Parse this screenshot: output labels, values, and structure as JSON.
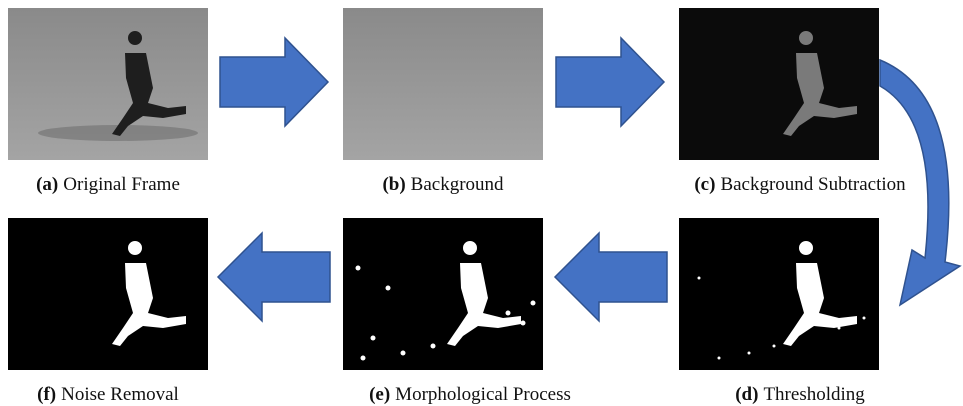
{
  "panels": [
    {
      "tag": "(a)",
      "caption": "Original Frame"
    },
    {
      "tag": "(b)",
      "caption": "Background"
    },
    {
      "tag": "(c)",
      "caption": "Background Subtraction"
    },
    {
      "tag": "(d)",
      "caption": "Thresholding"
    },
    {
      "tag": "(e)",
      "caption": "Morphological Process"
    },
    {
      "tag": "(f)",
      "caption": "Noise Removal"
    }
  ]
}
